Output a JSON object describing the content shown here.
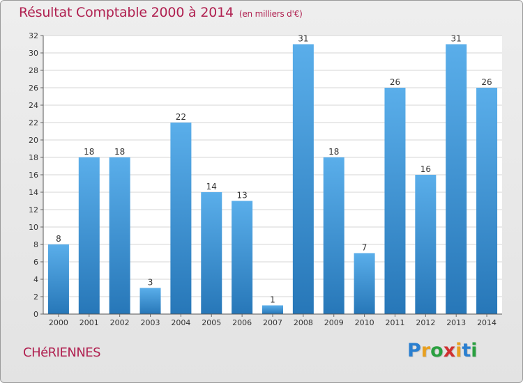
{
  "chart_data": {
    "type": "bar",
    "title": "Résultat Comptable 2000 à 2014",
    "subtitle": "(en milliers d'€)",
    "categories": [
      "2000",
      "2001",
      "2002",
      "2003",
      "2004",
      "2005",
      "2006",
      "2007",
      "2008",
      "2009",
      "2010",
      "2011",
      "2012",
      "2013",
      "2014"
    ],
    "values": [
      8,
      18,
      18,
      3,
      22,
      14,
      13,
      1,
      31,
      18,
      7,
      26,
      16,
      31,
      26
    ],
    "ylim": [
      0,
      32
    ],
    "yticks": [
      0,
      2,
      4,
      6,
      8,
      10,
      12,
      14,
      16,
      18,
      20,
      22,
      24,
      26,
      28,
      30,
      32
    ],
    "grid": true,
    "xlabel": "",
    "ylabel": ""
  },
  "footer": {
    "commune": "CHéRIENNES",
    "logo": {
      "letters": [
        "P",
        "r",
        "o",
        "x",
        "i",
        "t",
        "i"
      ],
      "colors": [
        "#2a7fd0",
        "#e8a020",
        "#2aa040",
        "#d03030",
        "#e8a020",
        "#2a7fd0",
        "#2aa040"
      ]
    }
  },
  "colors": {
    "bar_top": "#5aaeea",
    "bar_bottom": "#2777b8",
    "title": "#b02050"
  }
}
